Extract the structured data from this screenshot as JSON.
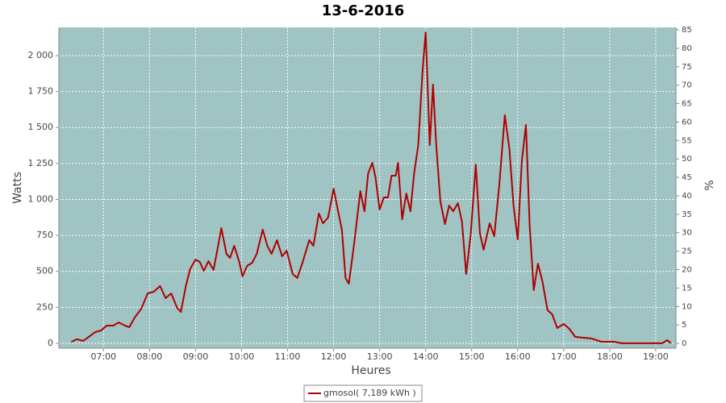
{
  "chart_data": {
    "type": "line",
    "title": "13-6-2016",
    "y_label": "Watts",
    "y2_label": "%",
    "x_label": "Heures",
    "background": "#a0c3c3",
    "grid": true,
    "xlim": [
      6.03,
      19.44
    ],
    "xticks": [
      {
        "value": 7,
        "label": "07:00"
      },
      {
        "value": 8,
        "label": "08:00"
      },
      {
        "value": 9,
        "label": "09:00"
      },
      {
        "value": 10,
        "label": "10:00"
      },
      {
        "value": 11,
        "label": "11:00"
      },
      {
        "value": 12,
        "label": "12:00"
      },
      {
        "value": 13,
        "label": "13:00"
      },
      {
        "value": 14,
        "label": "14:00"
      },
      {
        "value": 15,
        "label": "15:00"
      },
      {
        "value": 16,
        "label": "16:00"
      },
      {
        "value": 17,
        "label": "17:00"
      },
      {
        "value": 18,
        "label": "18:00"
      },
      {
        "value": 19,
        "label": "19:00"
      }
    ],
    "ylim": [
      -34,
      2196
    ],
    "yticks": [
      0,
      250,
      500,
      750,
      {
        "value": 1000,
        "label": "1 000"
      },
      {
        "value": 1250,
        "label": "1 250"
      },
      {
        "value": 1500,
        "label": "1 500"
      },
      {
        "value": 1750,
        "label": "1 750"
      },
      {
        "value": 2000,
        "label": "2 000"
      }
    ],
    "y2lim": [
      -1.3,
      85.66
    ],
    "y2ticks": [
      0,
      5,
      10,
      15,
      20,
      25,
      30,
      35,
      40,
      45,
      50,
      55,
      60,
      65,
      70,
      75,
      80,
      85
    ],
    "x": [
      6.3,
      6.42,
      6.56,
      6.68,
      6.82,
      6.95,
      7.07,
      7.21,
      7.33,
      7.47,
      7.56,
      7.68,
      7.82,
      7.96,
      8.09,
      8.23,
      8.35,
      8.47,
      8.6,
      8.68,
      8.79,
      8.88,
      9.0,
      9.09,
      9.18,
      9.28,
      9.39,
      9.49,
      9.56,
      9.67,
      9.75,
      9.84,
      9.95,
      10.02,
      10.12,
      10.23,
      10.33,
      10.46,
      10.56,
      10.65,
      10.77,
      10.88,
      10.98,
      11.11,
      11.21,
      11.33,
      11.47,
      11.56,
      11.68,
      11.77,
      11.88,
      12.0,
      12.09,
      12.18,
      12.26,
      12.33,
      12.44,
      12.58,
      12.67,
      12.75,
      12.84,
      12.91,
      13.0,
      13.09,
      13.18,
      13.26,
      13.35,
      13.4,
      13.49,
      13.58,
      13.67,
      13.75,
      13.84,
      13.93,
      14.0,
      14.09,
      14.16,
      14.23,
      14.32,
      14.42,
      14.51,
      14.6,
      14.7,
      14.79,
      14.88,
      14.98,
      15.09,
      15.18,
      15.26,
      15.39,
      15.49,
      15.6,
      15.72,
      15.82,
      15.91,
      16.0,
      16.09,
      16.18,
      16.26,
      16.35,
      16.44,
      16.54,
      16.65,
      16.75,
      16.86,
      17.0,
      17.12,
      17.25,
      17.42,
      17.6,
      17.82,
      18.09,
      18.26,
      19.14,
      19.25,
      19.33
    ],
    "series": [
      {
        "name": "gmosol( 7,189 kWh )",
        "color": "#b00000",
        "values": [
          10,
          28,
          17,
          45,
          78,
          90,
          123,
          123,
          145,
          123,
          112,
          180,
          240,
          347,
          358,
          398,
          314,
          347,
          246,
          218,
          398,
          515,
          582,
          566,
          504,
          571,
          510,
          678,
          801,
          622,
          594,
          678,
          566,
          465,
          538,
          560,
          622,
          790,
          678,
          622,
          717,
          605,
          644,
          482,
          454,
          566,
          717,
          678,
          902,
          834,
          874,
          1075,
          930,
          790,
          454,
          414,
          678,
          1058,
          918,
          1182,
          1254,
          1154,
          930,
          1014,
          1014,
          1165,
          1165,
          1254,
          862,
          1042,
          918,
          1182,
          1378,
          1882,
          2162,
          1378,
          1798,
          1378,
          986,
          829,
          958,
          918,
          974,
          846,
          482,
          762,
          1243,
          762,
          650,
          834,
          745,
          1098,
          1585,
          1350,
          958,
          722,
          1266,
          1518,
          818,
          370,
          554,
          426,
          230,
          202,
          106,
          134,
          101,
          45,
          39,
          34,
          11,
          11,
          0,
          0,
          22,
          0
        ]
      }
    ]
  }
}
